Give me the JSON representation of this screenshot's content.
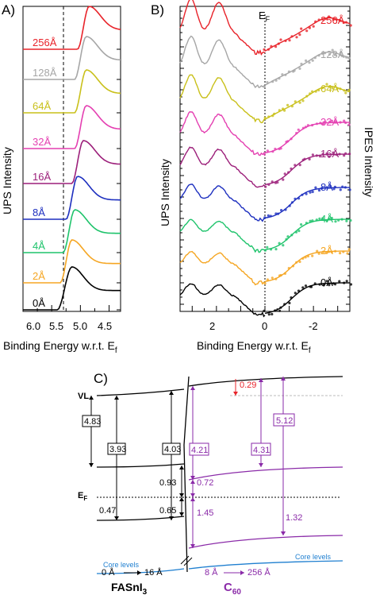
{
  "panel_a": {
    "label": "A)",
    "ylabel": "UPS Intensity",
    "xlabel": "Binding Energy w.r.t. E",
    "xlabel_sub": "f",
    "xticks": [
      "6.0",
      "5.5",
      "5.0",
      "4.5"
    ],
    "trace_labels": [
      "256Å",
      "128Å",
      "64Å",
      "32Å",
      "16Å",
      "8Å",
      "4Å",
      "2Å",
      "0Å"
    ],
    "trace_colors": [
      "#e8232a",
      "#a6a6a6",
      "#c9c01a",
      "#e43fb1",
      "#9c1f7a",
      "#1d2fbf",
      "#1ec36b",
      "#f5a623",
      "#000000"
    ]
  },
  "panel_b": {
    "label": "B)",
    "ylabel": "UPS Intensity",
    "ylabel_right": "IPES Intensity",
    "xlabel": "Binding Energy w.r.t. E",
    "xlabel_sub": "f",
    "ef_label": "E",
    "ef_sub": "F",
    "xticks": [
      "2",
      "0",
      "-2"
    ],
    "trace_labels": [
      "256Å",
      "128Å",
      "64Å",
      "32Å",
      "16Å",
      "8Å",
      "4Å",
      "2Å",
      "0Å"
    ],
    "trace_colors": [
      "#e8232a",
      "#a6a6a6",
      "#c9c01a",
      "#e43fb1",
      "#9c1f7a",
      "#1d2fbf",
      "#1ec36b",
      "#f5a623",
      "#000000"
    ]
  },
  "panel_c": {
    "label": "C)",
    "vl_label": "VL",
    "ef_label": "E",
    "ef_sub": "F",
    "left_values": [
      "4.83",
      "3.93",
      "4.03",
      "0.93",
      "0.47",
      "0.65"
    ],
    "right_values": [
      "0.29",
      "5.12",
      "4.21",
      "4.31",
      "0.72",
      "1.45",
      "1.32"
    ],
    "core_levels_left": "Core levels",
    "core_levels_right": "Core levels",
    "left_range_from": "0 Å",
    "left_range_to": "16 Å",
    "right_range_from": "8 Å",
    "right_range_to": "256 Å",
    "left_material": "FASnI",
    "left_material_sub": "3",
    "right_material": "C",
    "right_material_sub": "60",
    "colors": {
      "red": "#e8232a",
      "purple": "#8a2aa8",
      "blue": "#1f7fd0",
      "black": "#000000"
    }
  },
  "chart_data": [
    {
      "type": "line",
      "title": "",
      "xlabel": "Binding Energy w.r.t. Ef",
      "ylabel": "UPS Intensity",
      "xlim": [
        6.0,
        4.3
      ],
      "x_reversed": true,
      "dashed_reference_x": 5.4,
      "series_names_from_labels": true,
      "series": [
        {
          "name": "256Å",
          "onset": 5.05,
          "peak": 4.85
        },
        {
          "name": "128Å",
          "onset": 5.1,
          "peak": 4.9
        },
        {
          "name": "64Å",
          "onset": 5.1,
          "peak": 4.9
        },
        {
          "name": "32Å",
          "onset": 5.1,
          "peak": 4.9
        },
        {
          "name": "16Å",
          "onset": 5.15,
          "peak": 4.95
        },
        {
          "name": "8Å",
          "onset": 5.25,
          "peak": 5.05
        },
        {
          "name": "4Å",
          "onset": 5.3,
          "peak": 5.1
        },
        {
          "name": "2Å",
          "onset": 5.35,
          "peak": 5.15
        },
        {
          "name": "0Å",
          "onset": 5.4,
          "peak": 5.15
        }
      ]
    },
    {
      "type": "line",
      "title": "",
      "xlabel": "Binding Energy w.r.t. Ef",
      "ylabel": "UPS Intensity",
      "ylabel_right": "IPES Intensity",
      "xlim": [
        3.5,
        -3.5
      ],
      "x_reversed": true,
      "ef_x": 0,
      "series": [
        {
          "name": "256Å"
        },
        {
          "name": "128Å"
        },
        {
          "name": "64Å"
        },
        {
          "name": "32Å"
        },
        {
          "name": "16Å"
        },
        {
          "name": "8Å"
        },
        {
          "name": "4Å"
        },
        {
          "name": "2Å"
        },
        {
          "name": "0Å"
        }
      ]
    }
  ]
}
